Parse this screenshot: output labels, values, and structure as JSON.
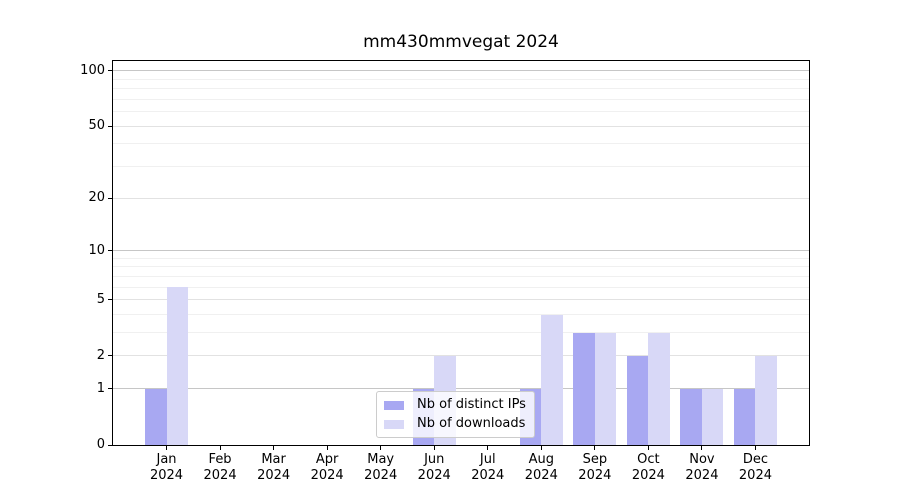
{
  "chart_data": {
    "type": "bar",
    "title": "mm430mmvegat 2024",
    "categories": [
      "Jan",
      "Feb",
      "Mar",
      "Apr",
      "May",
      "Jun",
      "Jul",
      "Aug",
      "Sep",
      "Oct",
      "Nov",
      "Dec"
    ],
    "category_year": "2024",
    "series": [
      {
        "name": "Nb of distinct IPs",
        "color": "#a8a8f2",
        "values": [
          1,
          0,
          0,
          0,
          0,
          1,
          0,
          1,
          3,
          2,
          1,
          1
        ]
      },
      {
        "name": "Nb of downloads",
        "color": "#d8d8f7",
        "values": [
          6,
          0,
          0,
          0,
          0,
          2,
          0,
          4,
          3,
          3,
          1,
          2
        ]
      }
    ],
    "xlabel": "",
    "ylabel": "",
    "yscale": "log1p",
    "ylim": [
      0,
      113
    ],
    "yticks": [
      0,
      1,
      2,
      5,
      10,
      20,
      50,
      100
    ],
    "grid_levels": {
      "major": [
        1,
        10,
        100
      ],
      "mid": [
        2,
        5,
        20,
        50
      ],
      "minor": [
        3,
        4,
        6,
        7,
        8,
        9,
        30,
        40,
        60,
        70,
        80,
        90
      ]
    },
    "grid": "both",
    "legend_position": "lower center"
  },
  "colors": {
    "grid_major": "#c6c6c6",
    "grid_mid": "#e2e2e2",
    "grid_minor": "#f0f0f0",
    "axis": "#000000",
    "text": "#000000",
    "legend_border": "#cccccc"
  }
}
